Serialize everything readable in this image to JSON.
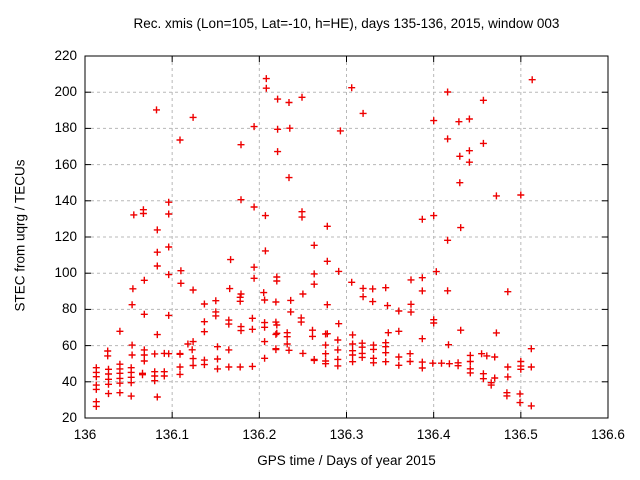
{
  "title": "Rec. xmis (Lon=105, Lat=-10, h=HE), days 135-136, 2015, window 003",
  "x_axis": {
    "label": "GPS time / Days of year 2015",
    "min": 136,
    "max": 136.6,
    "ticks": [
      {
        "value": 136.0,
        "label": "136"
      },
      {
        "value": 136.1,
        "label": "136.1"
      },
      {
        "value": 136.2,
        "label": "136.2"
      },
      {
        "value": 136.3,
        "label": "136.3"
      },
      {
        "value": 136.4,
        "label": "136.4"
      },
      {
        "value": 136.5,
        "label": "136.5"
      },
      {
        "value": 136.6,
        "label": "136.6"
      }
    ]
  },
  "y_axis": {
    "label": "STEC from uqrg / TECUs",
    "min": 20,
    "max": 220,
    "ticks": [
      {
        "value": 20,
        "label": "20"
      },
      {
        "value": 40,
        "label": "40"
      },
      {
        "value": 60,
        "label": "60"
      },
      {
        "value": 80,
        "label": "80"
      },
      {
        "value": 100,
        "label": "100"
      },
      {
        "value": 120,
        "label": "120"
      },
      {
        "value": 140,
        "label": "140"
      },
      {
        "value": 160,
        "label": "160"
      },
      {
        "value": 180,
        "label": "180"
      },
      {
        "value": 200,
        "label": "200"
      },
      {
        "value": 220,
        "label": "220"
      }
    ]
  },
  "colors": {
    "marker": "#ee0000",
    "grid": "#b8b8b8",
    "border": "#000000",
    "text": "#000000",
    "background": "#ffffff"
  },
  "chart_data": {
    "type": "scatter",
    "title": "Rec. xmis (Lon=105, Lat=-10, h=HE), days 135-136, 2015, window 003",
    "xlabel": "GPS time / Days of year 2015",
    "ylabel": "STEC from uqrg / TECUs",
    "xlim": [
      136,
      136.6
    ],
    "ylim": [
      20,
      220
    ],
    "grid": true,
    "legend": "none",
    "marker": "plus",
    "series": [
      {
        "name": "STEC",
        "color": "#ee0000",
        "points": [
          [
            136.013,
            47.8
          ],
          [
            136.013,
            45.2
          ],
          [
            136.013,
            42.8
          ],
          [
            136.013,
            38.2
          ],
          [
            136.013,
            35.8
          ],
          [
            136.013,
            29.0
          ],
          [
            136.013,
            26.4
          ],
          [
            136.026,
            57.0
          ],
          [
            136.026,
            54.3
          ],
          [
            136.027,
            46.9
          ],
          [
            136.027,
            44.3
          ],
          [
            136.027,
            41.4
          ],
          [
            136.027,
            38.6
          ],
          [
            136.027,
            33.5
          ],
          [
            136.04,
            67.9
          ],
          [
            136.04,
            49.7
          ],
          [
            136.04,
            47.1
          ],
          [
            136.04,
            44.7
          ],
          [
            136.04,
            41.9
          ],
          [
            136.04,
            39.2
          ],
          [
            136.04,
            34.0
          ],
          [
            136.054,
            82.6
          ],
          [
            136.055,
            91.4
          ],
          [
            136.054,
            60.3
          ],
          [
            136.054,
            54.8
          ],
          [
            136.053,
            47.8
          ],
          [
            136.053,
            45.2
          ],
          [
            136.053,
            42.5
          ],
          [
            136.053,
            39.5
          ],
          [
            136.053,
            32.1
          ],
          [
            136.056,
            132.2
          ],
          [
            136.066,
            44.7
          ],
          [
            136.066,
            43.9
          ],
          [
            136.067,
            135.1
          ],
          [
            136.067,
            133.0
          ],
          [
            136.068,
            96.1
          ],
          [
            136.068,
            77.3
          ],
          [
            136.068,
            57.6
          ],
          [
            136.068,
            54.8
          ],
          [
            136.068,
            51.5
          ],
          [
            136.08,
            55.4
          ],
          [
            136.08,
            45.6
          ],
          [
            136.08,
            43.2
          ],
          [
            136.08,
            40.6
          ],
          [
            136.082,
            190.2
          ],
          [
            136.083,
            123.9
          ],
          [
            136.083,
            111.6
          ],
          [
            136.083,
            104.0
          ],
          [
            136.083,
            66.1
          ],
          [
            136.083,
            31.6
          ],
          [
            136.091,
            55.7
          ],
          [
            136.091,
            45.6
          ],
          [
            136.091,
            43.2
          ],
          [
            136.096,
            139.2
          ],
          [
            136.096,
            132.7
          ],
          [
            136.096,
            114.5
          ],
          [
            136.096,
            99.2
          ],
          [
            136.096,
            76.7
          ],
          [
            136.096,
            55.5
          ],
          [
            136.109,
            173.6
          ],
          [
            136.11,
            101.4
          ],
          [
            136.11,
            94.4
          ],
          [
            136.109,
            55.6
          ],
          [
            136.109,
            55.2
          ],
          [
            136.109,
            48.2
          ],
          [
            136.109,
            44.1
          ],
          [
            136.118,
            60.9
          ],
          [
            136.123,
            57.7
          ],
          [
            136.124,
            186.1
          ],
          [
            136.124,
            90.7
          ],
          [
            136.124,
            62.2
          ],
          [
            136.124,
            52.8
          ],
          [
            136.124,
            49.0
          ],
          [
            136.137,
            83.0
          ],
          [
            136.137,
            73.2
          ],
          [
            136.137,
            67.7
          ],
          [
            136.137,
            52.0
          ],
          [
            136.137,
            49.5
          ],
          [
            136.15,
            84.8
          ],
          [
            136.15,
            78.6
          ],
          [
            136.15,
            76.4
          ],
          [
            136.152,
            59.4
          ],
          [
            136.152,
            52.6
          ],
          [
            136.152,
            47.1
          ],
          [
            136.165,
            74.1
          ],
          [
            136.165,
            71.9
          ],
          [
            136.165,
            57.6
          ],
          [
            136.165,
            48.2
          ],
          [
            136.166,
            91.5
          ],
          [
            136.167,
            107.5
          ],
          [
            136.178,
            86.7
          ],
          [
            136.178,
            84.5
          ],
          [
            136.179,
            171.0
          ],
          [
            136.179,
            140.6
          ],
          [
            136.179,
            88.5
          ],
          [
            136.179,
            70.5
          ],
          [
            136.179,
            68.3
          ],
          [
            136.178,
            48.2
          ],
          [
            136.192,
            75.1
          ],
          [
            136.192,
            69.0
          ],
          [
            136.192,
            48.5
          ],
          [
            136.194,
            181.0
          ],
          [
            136.194,
            136.6
          ],
          [
            136.194,
            103.3
          ],
          [
            136.194,
            97.2
          ],
          [
            136.205,
            89.3
          ],
          [
            136.206,
            85.2
          ],
          [
            136.206,
            72.7
          ],
          [
            136.206,
            70.1
          ],
          [
            136.206,
            62.2
          ],
          [
            136.206,
            53.0
          ],
          [
            136.208,
            207.5
          ],
          [
            136.208,
            202.2
          ],
          [
            136.207,
            131.8
          ],
          [
            136.207,
            112.3
          ],
          [
            136.219,
            84.1
          ],
          [
            136.219,
            73.0
          ],
          [
            136.219,
            66.2
          ],
          [
            136.219,
            58.3
          ],
          [
            136.219,
            57.8
          ],
          [
            136.22,
            97.9
          ],
          [
            136.22,
            95.7
          ],
          [
            136.22,
            71.4
          ],
          [
            136.22,
            66.8
          ],
          [
            136.221,
            196.2
          ],
          [
            136.221,
            179.5
          ],
          [
            136.221,
            167.2
          ],
          [
            136.232,
            67.1
          ],
          [
            136.232,
            64.9
          ],
          [
            136.232,
            60.9
          ],
          [
            136.234,
            194.3
          ],
          [
            136.235,
            180.1
          ],
          [
            136.234,
            152.8
          ],
          [
            136.234,
            57.4
          ],
          [
            136.236,
            85.0
          ],
          [
            136.236,
            78.6
          ],
          [
            136.248,
            75.3
          ],
          [
            136.248,
            73.0
          ],
          [
            136.249,
            197.2
          ],
          [
            136.249,
            134.0
          ],
          [
            136.249,
            131.0
          ],
          [
            136.25,
            88.5
          ],
          [
            136.25,
            55.7
          ],
          [
            136.261,
            68.5
          ],
          [
            136.261,
            65.1
          ],
          [
            136.263,
            115.4
          ],
          [
            136.263,
            99.6
          ],
          [
            136.263,
            93.9
          ],
          [
            136.263,
            52.3
          ],
          [
            136.263,
            51.8
          ],
          [
            136.276,
            66.4
          ],
          [
            136.276,
            60.3
          ],
          [
            136.276,
            55.5
          ],
          [
            136.276,
            51.5
          ],
          [
            136.276,
            50.0
          ],
          [
            136.278,
            125.9
          ],
          [
            136.278,
            106.6
          ],
          [
            136.278,
            82.6
          ],
          [
            136.278,
            66.6
          ],
          [
            136.29,
            63.1
          ],
          [
            136.29,
            57.6
          ],
          [
            136.29,
            52.4
          ],
          [
            136.29,
            48.8
          ],
          [
            136.291,
            101.0
          ],
          [
            136.291,
            72.1
          ],
          [
            136.293,
            178.6
          ],
          [
            136.306,
            202.5
          ],
          [
            136.306,
            95.0
          ],
          [
            136.307,
            65.9
          ],
          [
            136.307,
            60.9
          ],
          [
            136.307,
            57.2
          ],
          [
            136.307,
            54.8
          ],
          [
            136.307,
            51.1
          ],
          [
            136.318,
            61.3
          ],
          [
            136.318,
            59.1
          ],
          [
            136.318,
            55.7
          ],
          [
            136.318,
            53.5
          ],
          [
            136.319,
            188.3
          ],
          [
            136.319,
            91.6
          ],
          [
            136.319,
            87.0
          ],
          [
            136.33,
            91.3
          ],
          [
            136.33,
            84.3
          ],
          [
            136.331,
            60.3
          ],
          [
            136.331,
            57.9
          ],
          [
            136.331,
            53.0
          ],
          [
            136.331,
            50.5
          ],
          [
            136.345,
            92.0
          ],
          [
            136.345,
            61.6
          ],
          [
            136.345,
            59.4
          ],
          [
            136.345,
            56.1
          ],
          [
            136.345,
            51.1
          ],
          [
            136.347,
            82.1
          ],
          [
            136.348,
            67.1
          ],
          [
            136.36,
            79.1
          ],
          [
            136.36,
            67.9
          ],
          [
            136.36,
            53.7
          ],
          [
            136.36,
            49.1
          ],
          [
            136.373,
            55.5
          ],
          [
            136.373,
            51.2
          ],
          [
            136.374,
            96.3
          ],
          [
            136.374,
            82.8
          ],
          [
            136.374,
            78.5
          ],
          [
            136.387,
            129.8
          ],
          [
            136.387,
            97.5
          ],
          [
            136.387,
            90.2
          ],
          [
            136.387,
            63.8
          ],
          [
            136.387,
            50.9
          ],
          [
            136.387,
            47.6
          ],
          [
            136.399,
            50.3
          ],
          [
            136.4,
            184.3
          ],
          [
            136.4,
            131.8
          ],
          [
            136.4,
            74.3
          ],
          [
            136.4,
            72.5
          ],
          [
            136.403,
            100.9
          ],
          [
            136.409,
            50.3
          ],
          [
            136.416,
            200.1
          ],
          [
            136.416,
            174.2
          ],
          [
            136.416,
            118.2
          ],
          [
            136.416,
            90.3
          ],
          [
            136.417,
            60.5
          ],
          [
            136.418,
            50.0
          ],
          [
            136.428,
            50.5
          ],
          [
            136.428,
            48.9
          ],
          [
            136.429,
            183.7
          ],
          [
            136.43,
            164.6
          ],
          [
            136.43,
            150.0
          ],
          [
            136.431,
            125.2
          ],
          [
            136.431,
            68.5
          ],
          [
            136.441,
            185.2
          ],
          [
            136.441,
            167.7
          ],
          [
            136.441,
            161.3
          ],
          [
            136.442,
            54.6
          ],
          [
            136.442,
            51.2
          ],
          [
            136.442,
            47.2
          ],
          [
            136.442,
            44.9
          ],
          [
            136.455,
            55.5
          ],
          [
            136.457,
            195.5
          ],
          [
            136.457,
            171.7
          ],
          [
            136.457,
            44.5
          ],
          [
            136.457,
            41.7
          ],
          [
            136.461,
            54.3
          ],
          [
            136.466,
            39.5
          ],
          [
            136.466,
            38.2
          ],
          [
            136.47,
            53.7
          ],
          [
            136.47,
            42.1
          ],
          [
            136.472,
            142.7
          ],
          [
            136.472,
            67.0
          ],
          [
            136.484,
            34.0
          ],
          [
            136.484,
            32.2
          ],
          [
            136.485,
            89.8
          ],
          [
            136.485,
            48.2
          ],
          [
            136.485,
            42.7
          ],
          [
            136.499,
            33.3
          ],
          [
            136.499,
            28.5
          ],
          [
            136.5,
            143.2
          ],
          [
            136.5,
            51.2
          ],
          [
            136.5,
            48.7
          ],
          [
            136.5,
            46.9
          ],
          [
            136.512,
            58.3
          ],
          [
            136.512,
            48.2
          ],
          [
            136.512,
            26.7
          ],
          [
            136.513,
            206.9
          ]
        ]
      }
    ]
  }
}
